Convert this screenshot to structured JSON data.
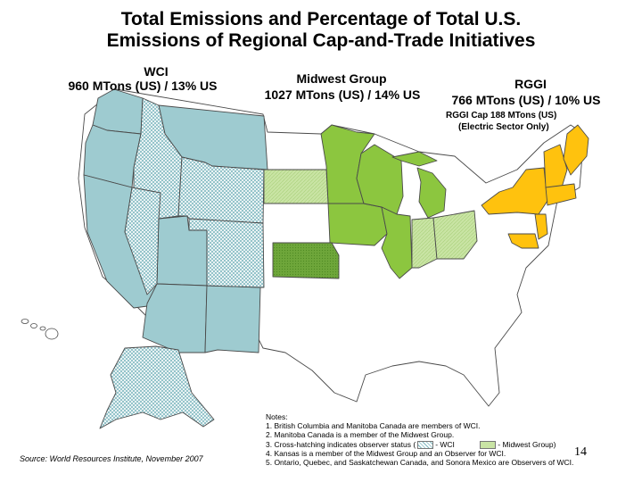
{
  "title": {
    "line1": "Total Emissions and Percentage of Total U.S.",
    "line2": "Emissions of Regional Cap-and-Trade Initiatives"
  },
  "regions": {
    "wci": {
      "name": "WCI",
      "emissions": "960 MTons (US) / 13% US",
      "color": "#9ecbd0"
    },
    "midwest": {
      "name": "Midwest Group",
      "emissions": "1027 MTons (US) / 14% US",
      "color": "#8cc63f",
      "observer_color": "#c9e4a4",
      "kansas_color": "#6ea63a"
    },
    "rggi": {
      "name": "RGGI",
      "emissions": "766 MTons (US) / 10% US",
      "cap": "RGGI Cap 188 MTons (US)",
      "cap_note": "(Electric Sector Only)",
      "color": "#ffc20e"
    }
  },
  "map_colors": {
    "nonmember": "#ffffff",
    "border": "#4a4a4a"
  },
  "notes": {
    "heading": "Notes:",
    "items": [
      "1. British Columbia and Manitoba Canada are members of WCI.",
      "2. Manitoba Canada is a member of the Midwest Group.",
      "3. Cross-hatching indicates observer status (",
      "4. Kansas is a member of the Midwest Group and an Observer for WCI.",
      "5. Ontario, Quebec, and Saskatchewan Canada, and Sonora Mexico are Observers of WCI."
    ],
    "legend_wci": "- WCI",
    "legend_midwest": "- Midwest Group)"
  },
  "source": "Source: World Resources Institute, November 2007",
  "page_number": "14"
}
